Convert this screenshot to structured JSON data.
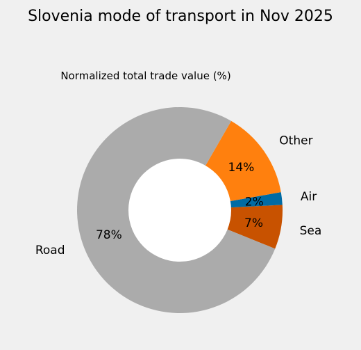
{
  "chart_data": {
    "type": "pie",
    "donut": true,
    "title": "Slovenia mode of transport in Nov 2025",
    "subtitle": "Normalized total trade value (%)",
    "start_angle_deg": -22,
    "slices": [
      {
        "name": "Sea",
        "value": 7,
        "label": "7%",
        "color": "#c85200"
      },
      {
        "name": "Air",
        "value": 2,
        "label": "2%",
        "color": "#006ba4"
      },
      {
        "name": "Other",
        "value": 14,
        "label": "14%",
        "color": "#ff800e"
      },
      {
        "name": "Road",
        "value": 78,
        "label": "78%",
        "color": "#ababab"
      }
    ],
    "center_color": "#ffffff",
    "background": "#f0f0f0"
  }
}
